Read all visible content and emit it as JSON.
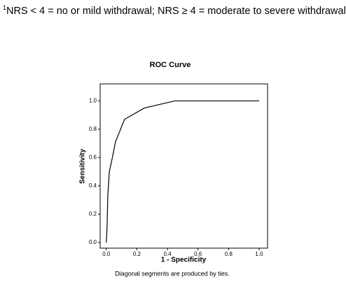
{
  "footnote": {
    "marker": "1",
    "text": "NRS < 4 = no or mild withdrawal; NRS ≥ 4 = moderate to severe withdrawal"
  },
  "chart_data": {
    "type": "line",
    "title": "ROC Curve",
    "x_label": "1 - Specificity",
    "y_label": "Sensitivity",
    "caption": "Diagonal segments are produced by ties.",
    "x": [
      0,
      0.005,
      0.01,
      0.02,
      0.04,
      0.06,
      0.12,
      0.25,
      0.45,
      1.0
    ],
    "values": [
      0,
      0.1,
      0.33,
      0.5,
      0.6,
      0.71,
      0.87,
      0.95,
      1.0,
      1.0
    ],
    "color": "#000000",
    "xlim": [
      -0.04,
      1.055
    ],
    "ylim": [
      -0.04,
      1.12
    ],
    "xticks": [
      {
        "value": 0,
        "label": "0.0"
      },
      {
        "value": 0.2,
        "label": "0.2"
      },
      {
        "value": 0.4,
        "label": "0.4"
      },
      {
        "value": 0.6,
        "label": "0.6"
      },
      {
        "value": 0.8,
        "label": "0.8"
      },
      {
        "value": 1,
        "label": "1.0"
      }
    ],
    "yticks": [
      {
        "value": 0,
        "label": "0.0"
      },
      {
        "value": 0.2,
        "label": "0.2"
      },
      {
        "value": 0.4,
        "label": "0.4"
      },
      {
        "value": 0.6,
        "label": "0.6"
      },
      {
        "value": 0.8,
        "label": "0.8"
      },
      {
        "value": 1,
        "label": "1.0"
      }
    ]
  }
}
